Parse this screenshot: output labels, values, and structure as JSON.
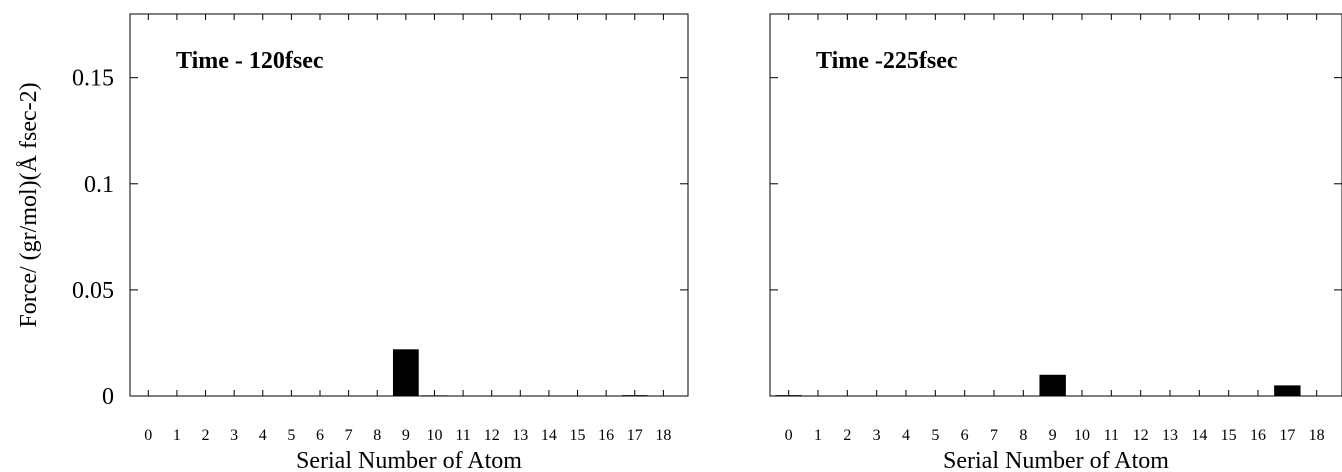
{
  "chart_data": [
    {
      "type": "bar",
      "annotation": "Time - 120fsec",
      "xlabel": "Serial Number of Atom",
      "ylabel": "Force/ (gr/mol)(Å fsec-2)",
      "categories": [
        "0",
        "1",
        "2",
        "3",
        "4",
        "5",
        "6",
        "7",
        "8",
        "9",
        "10",
        "11",
        "12",
        "13",
        "14",
        "15",
        "16",
        "17",
        "18"
      ],
      "values": [
        0,
        0,
        0,
        0,
        0,
        0,
        0,
        0,
        0,
        0.022,
        0.0003,
        0,
        0,
        0,
        0,
        0,
        0,
        0.0004,
        0
      ],
      "ylim": [
        0,
        0.18
      ],
      "yticks": [
        "0",
        "0.05",
        "0.1",
        "0.15"
      ],
      "ytick_values": [
        0,
        0.05,
        0.1,
        0.15
      ],
      "grid": false,
      "colors": {
        "bar": "#000000"
      }
    },
    {
      "type": "bar",
      "annotation": "Time -225fsec",
      "xlabel": "Serial Number of Atom",
      "ylabel": "",
      "categories": [
        "0",
        "1",
        "2",
        "3",
        "4",
        "5",
        "6",
        "7",
        "8",
        "9",
        "10",
        "11",
        "12",
        "13",
        "14",
        "15",
        "16",
        "17",
        "18"
      ],
      "values": [
        0.0004,
        0,
        0,
        0,
        0,
        0,
        0,
        0,
        0,
        0.01,
        0,
        0,
        0,
        0,
        0,
        0,
        0,
        0.005,
        0
      ],
      "ylim": [
        0,
        0.18
      ],
      "yticks": [],
      "ytick_values": [
        0,
        0.05,
        0.1,
        0.15
      ],
      "grid": false,
      "colors": {
        "bar": "#000000"
      }
    }
  ]
}
